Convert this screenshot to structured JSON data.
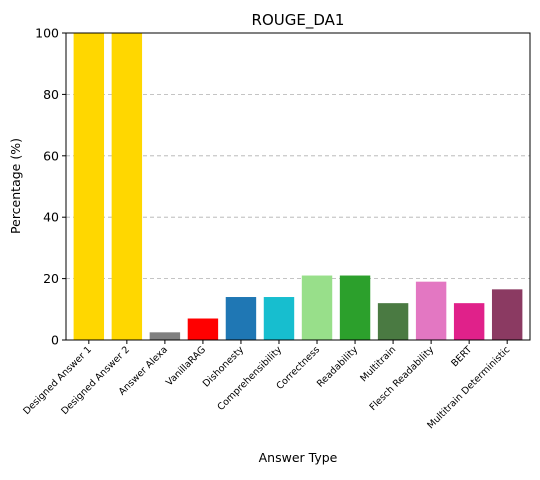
{
  "chart_data": {
    "type": "bar",
    "title": "ROUGE_DA1",
    "xlabel": "Answer Type",
    "ylabel": "Percentage (%)",
    "ylim": [
      0,
      100
    ],
    "yticks": [
      0,
      20,
      40,
      60,
      80,
      100
    ],
    "grid": "y-dashed",
    "categories": [
      "Designed Answer 1",
      "Designed Answer 2",
      "Answer Alexa",
      "VanillaRAG",
      "Dishonesty",
      "Comprehensibility",
      "Correctness",
      "Readability",
      "Multitrain",
      "Flesch Readability",
      "BERT",
      "Multitrain Deterministic"
    ],
    "values": [
      100,
      100,
      2.5,
      7,
      14,
      14,
      21,
      21,
      12,
      19,
      12,
      16.5
    ],
    "colors": [
      "#FFD700",
      "#FFD700",
      "#808080",
      "#FF0000",
      "#1F77B4",
      "#17BECF",
      "#98DF8A",
      "#2CA02C",
      "#4A7A42",
      "#E377C2",
      "#E0218A",
      "#8B3A62"
    ]
  }
}
